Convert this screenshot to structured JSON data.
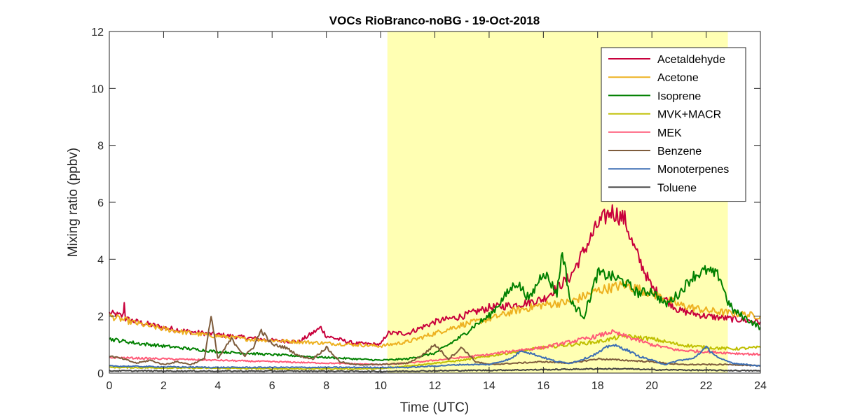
{
  "chart_data": {
    "type": "line",
    "title": "VOCs RioBranco-noBG - 19-Oct-2018",
    "xlabel": "Time (UTC)",
    "ylabel": "Mixing ratio (ppbv)",
    "xlim": [
      0,
      24
    ],
    "ylim": [
      0,
      12
    ],
    "xticks": [
      0,
      2,
      4,
      6,
      8,
      10,
      12,
      14,
      16,
      18,
      20,
      22,
      24
    ],
    "yticks": [
      0,
      2,
      4,
      6,
      8,
      10,
      12
    ],
    "grid": false,
    "legend_position": "top-right",
    "shaded_region": {
      "x": [
        10.25,
        22.8
      ],
      "color": "#ffffb3"
    },
    "series": [
      {
        "name": "Acetaldehyde",
        "color": "#c8003c",
        "x": [
          0,
          0.5,
          0.55,
          0.6,
          1,
          2,
          3,
          4,
          5,
          6,
          7,
          7.8,
          8,
          9,
          10,
          10.25,
          11,
          12,
          13,
          14,
          15,
          16,
          16.5,
          17,
          17.5,
          18,
          18.5,
          19,
          19.3,
          20,
          21,
          22,
          23,
          24
        ],
        "y": [
          2.1,
          2.0,
          2.45,
          1.9,
          1.8,
          1.6,
          1.45,
          1.35,
          1.25,
          1.15,
          1.1,
          1.6,
          1.3,
          1.05,
          1.0,
          1.4,
          1.4,
          1.8,
          2.0,
          2.3,
          2.4,
          2.6,
          3.0,
          3.4,
          4.3,
          5.2,
          5.7,
          5.4,
          4.5,
          3.0,
          2.2,
          2.0,
          1.9,
          1.8
        ]
      },
      {
        "name": "Acetone",
        "color": "#edb120",
        "x": [
          0,
          1,
          2,
          3,
          4,
          5,
          6,
          7,
          8,
          9,
          10,
          11,
          12,
          13,
          14,
          15,
          16,
          17,
          18,
          19,
          20,
          21,
          22,
          23,
          24
        ],
        "y": [
          2.0,
          1.75,
          1.55,
          1.4,
          1.3,
          1.2,
          1.15,
          1.1,
          1.05,
          1.0,
          0.95,
          1.1,
          1.4,
          1.7,
          1.9,
          2.2,
          2.4,
          2.5,
          2.9,
          3.1,
          2.8,
          2.4,
          2.2,
          2.1,
          2.0
        ]
      },
      {
        "name": "Isoprene",
        "color": "#008000",
        "x": [
          0,
          1,
          2,
          3,
          4,
          5,
          6,
          7,
          8,
          9,
          10,
          11,
          12,
          12.5,
          13,
          13.5,
          14,
          14.5,
          15,
          15.5,
          16,
          16.5,
          16.7,
          17,
          17.5,
          18,
          18.5,
          19,
          19.5,
          20,
          20.5,
          21,
          21.5,
          22,
          22.5,
          22.8,
          23,
          23.5,
          24
        ],
        "y": [
          1.2,
          1.05,
          0.95,
          0.85,
          0.75,
          0.7,
          0.65,
          0.6,
          0.55,
          0.5,
          0.45,
          0.5,
          0.7,
          1.0,
          1.3,
          1.7,
          2.0,
          2.6,
          3.2,
          2.6,
          3.6,
          2.8,
          4.3,
          2.5,
          2.0,
          3.5,
          3.4,
          3.2,
          2.8,
          2.9,
          2.4,
          2.8,
          3.4,
          3.6,
          3.4,
          2.5,
          2.2,
          1.9,
          1.6
        ]
      },
      {
        "name": "MVK+MACR",
        "color": "#bfbf00",
        "x": [
          0,
          2,
          4,
          6,
          8,
          10,
          11,
          12,
          13,
          14,
          15,
          16,
          17,
          18,
          19,
          20,
          21,
          22,
          23,
          24
        ],
        "y": [
          0.2,
          0.18,
          0.17,
          0.15,
          0.15,
          0.15,
          0.25,
          0.35,
          0.45,
          0.6,
          0.75,
          0.9,
          1.0,
          1.1,
          1.3,
          1.2,
          1.0,
          0.9,
          0.85,
          0.9
        ]
      },
      {
        "name": "MEK",
        "color": "#ff5a78",
        "x": [
          0,
          2,
          4,
          6,
          8,
          10,
          11,
          12,
          13,
          14,
          15,
          16,
          17,
          18,
          18.5,
          19,
          20,
          21,
          22,
          23,
          24
        ],
        "y": [
          0.55,
          0.5,
          0.45,
          0.4,
          0.35,
          0.3,
          0.35,
          0.45,
          0.55,
          0.65,
          0.8,
          0.9,
          1.1,
          1.3,
          1.45,
          1.3,
          1.0,
          0.8,
          0.75,
          0.7,
          0.65
        ]
      },
      {
        "name": "Benzene",
        "color": "#7e5c3c",
        "x": [
          0,
          0.5,
          1,
          1.5,
          2,
          2.5,
          3,
          3.5,
          3.75,
          4,
          4.5,
          5,
          5.3,
          5.6,
          6,
          6.5,
          7,
          7.5,
          8,
          8.5,
          9,
          9.5,
          10,
          11,
          11.5,
          12,
          12.5,
          13,
          13.5,
          14,
          15,
          16,
          17,
          18,
          19,
          20,
          21,
          22,
          23,
          24
        ],
        "y": [
          0.6,
          0.5,
          0.35,
          0.45,
          0.3,
          0.4,
          0.3,
          0.5,
          2.0,
          0.5,
          1.2,
          0.6,
          0.9,
          1.5,
          1.0,
          0.9,
          0.6,
          0.5,
          0.9,
          0.4,
          0.3,
          0.3,
          0.3,
          0.35,
          0.6,
          1.0,
          0.5,
          0.9,
          0.4,
          0.3,
          0.35,
          0.4,
          0.35,
          0.5,
          0.45,
          0.4,
          0.3,
          0.3,
          0.3,
          0.25
        ]
      },
      {
        "name": "Monoterpenes",
        "color": "#3c6eb4",
        "x": [
          0,
          2,
          4,
          6,
          8,
          10,
          11,
          12,
          13,
          14,
          14.8,
          15.2,
          16,
          16.5,
          17,
          17.5,
          18,
          18.5,
          19,
          19.5,
          20,
          20.5,
          21,
          21.5,
          22,
          22.5,
          23,
          24
        ],
        "y": [
          0.25,
          0.22,
          0.2,
          0.2,
          0.2,
          0.2,
          0.2,
          0.25,
          0.3,
          0.3,
          0.5,
          0.8,
          0.55,
          0.4,
          0.35,
          0.5,
          0.7,
          1.0,
          0.85,
          0.6,
          0.45,
          0.3,
          0.45,
          0.5,
          0.9,
          0.5,
          0.35,
          0.25
        ]
      },
      {
        "name": "Toluene",
        "color": "#404040",
        "x": [
          0,
          4,
          8,
          10,
          12,
          14,
          16,
          18,
          19,
          20,
          22,
          24
        ],
        "y": [
          0.08,
          0.07,
          0.07,
          0.06,
          0.08,
          0.1,
          0.12,
          0.15,
          0.15,
          0.12,
          0.1,
          0.08
        ]
      }
    ]
  }
}
